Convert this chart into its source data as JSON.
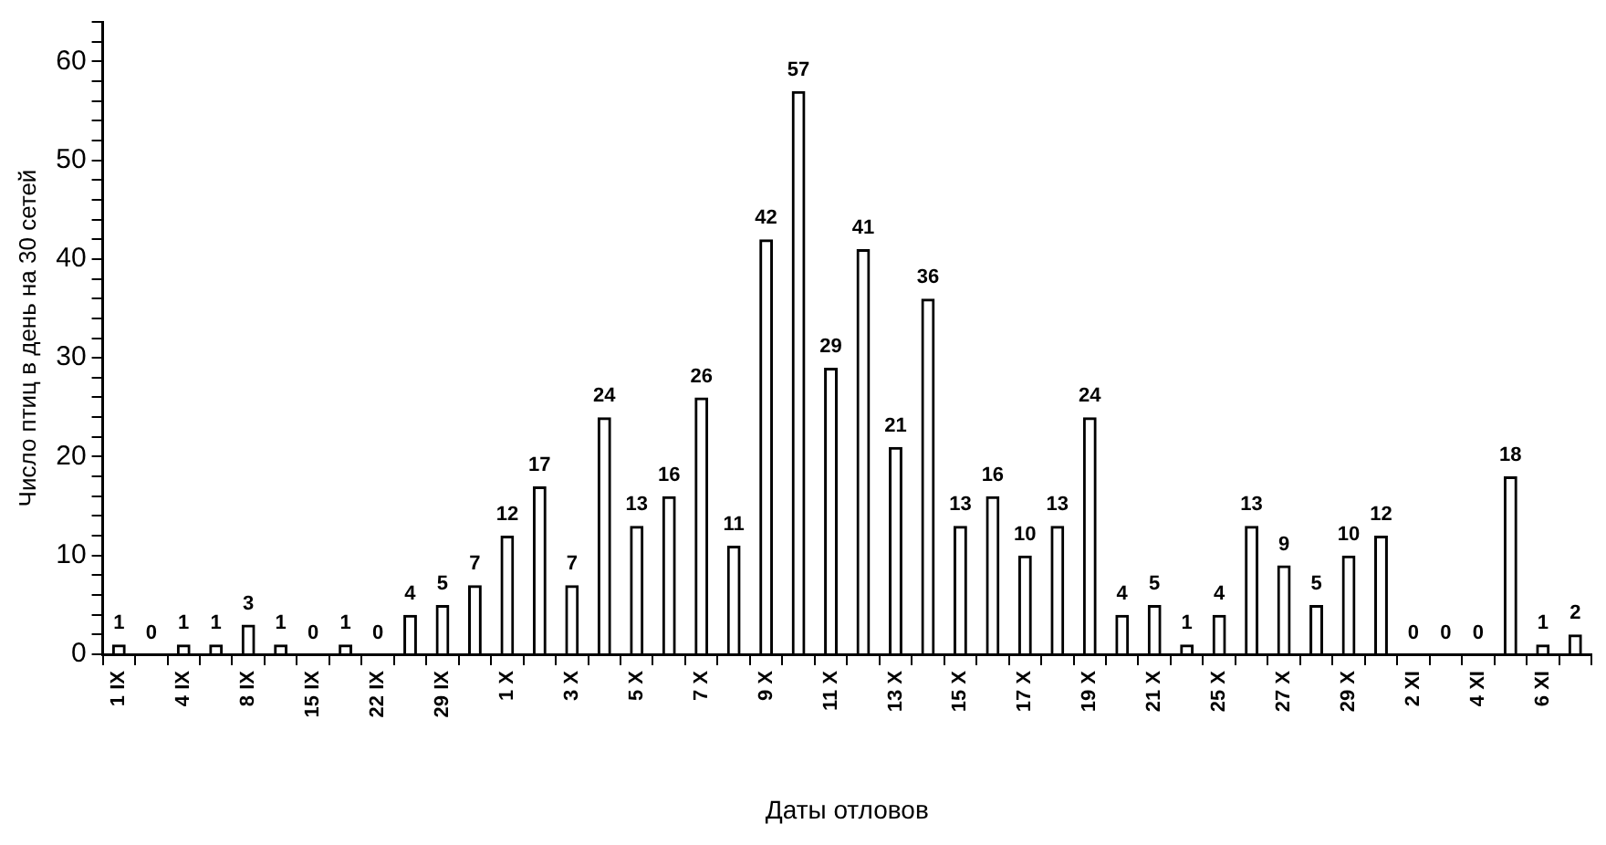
{
  "chart_data": {
    "type": "bar",
    "xlabel": "Даты отловов",
    "ylabel": "Число птиц в день на 30 сетей",
    "categories": [
      "1 IX",
      null,
      "4 IX",
      null,
      "8 IX",
      null,
      "15 IX",
      null,
      "22 IX",
      null,
      "29 IX",
      null,
      "1 X",
      null,
      "3 X",
      null,
      "5 X",
      null,
      "7 X",
      null,
      "9 X",
      null,
      "11 X",
      null,
      "13 X",
      null,
      "15 X",
      null,
      "17 X",
      null,
      "19 X",
      null,
      "21 X",
      null,
      "25 X",
      null,
      "27 X",
      null,
      "29 X",
      null,
      "2 XI",
      null,
      "4 XI",
      null,
      "6 XI",
      null
    ],
    "values": [
      1,
      0,
      1,
      1,
      3,
      1,
      0,
      1,
      0,
      4,
      5,
      7,
      12,
      17,
      7,
      24,
      13,
      16,
      26,
      11,
      42,
      57,
      29,
      41,
      21,
      36,
      13,
      16,
      10,
      13,
      24,
      4,
      5,
      1,
      4,
      13,
      9,
      5,
      10,
      12,
      0,
      0,
      0,
      18,
      1,
      2
    ],
    "color": "#000000",
    "ylim": [
      0,
      64
    ],
    "yticks": [
      0,
      {
        "value": 2,
        "label": null
      },
      {
        "value": 4,
        "label": null
      },
      {
        "value": 6,
        "label": null
      },
      {
        "value": 8,
        "label": null
      },
      10,
      {
        "value": 12,
        "label": null
      },
      {
        "value": 14,
        "label": null
      },
      {
        "value": 16,
        "label": null
      },
      {
        "value": 18,
        "label": null
      },
      20,
      {
        "value": 22,
        "label": null
      },
      {
        "value": 24,
        "label": null
      },
      {
        "value": 26,
        "label": null
      },
      {
        "value": 28,
        "label": null
      },
      30,
      {
        "value": 32,
        "label": null
      },
      {
        "value": 34,
        "label": null
      },
      {
        "value": 36,
        "label": null
      },
      {
        "value": 38,
        "label": null
      },
      40,
      {
        "value": 42,
        "label": null
      },
      {
        "value": 44,
        "label": null
      },
      {
        "value": 46,
        "label": null
      },
      {
        "value": 48,
        "label": null
      },
      50,
      {
        "value": 52,
        "label": null
      },
      {
        "value": 54,
        "label": null
      },
      {
        "value": 56,
        "label": null
      },
      {
        "value": 58,
        "label": null
      },
      60,
      {
        "value": 62,
        "label": null
      },
      {
        "value": 64,
        "label": null
      }
    ],
    "data_labels": true,
    "grid": false,
    "legend": false
  }
}
